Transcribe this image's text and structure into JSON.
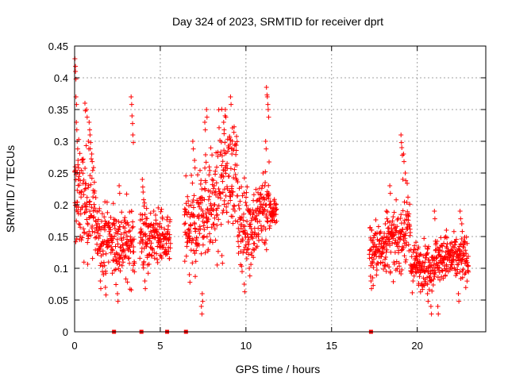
{
  "chart_data": {
    "type": "scatter",
    "title": "Day 324 of 2023, SRMTID for receiver dprt",
    "xlabel": "GPS time / hours",
    "ylabel": "SRMTID / TECUs",
    "xlim": [
      0,
      24
    ],
    "ylim": [
      0,
      0.45
    ],
    "xticks": [
      "0",
      "5",
      "10",
      "15",
      "20"
    ],
    "xtick_values": [
      0,
      5,
      10,
      15,
      20
    ],
    "yticks": [
      "0",
      "0.05",
      "0.1",
      "0.15",
      "0.2",
      "0.25",
      "0.3",
      "0.35",
      "0.4",
      "0.45"
    ],
    "ytick_values": [
      0,
      0.05,
      0.1,
      0.15,
      0.2,
      0.25,
      0.3,
      0.35,
      0.4,
      0.45
    ],
    "grid": true,
    "marker": "plus",
    "color": "#ff0000",
    "series": [
      {
        "segments": [
          {
            "x_range": [
              0.0,
              0.5
            ],
            "center": 0.21,
            "spread": 0.07,
            "peaks": [
              [
                0.02,
                0.43
              ],
              [
                0.05,
                0.41
              ],
              [
                0.08,
                0.37
              ],
              [
                0.1,
                0.33
              ],
              [
                0.15,
                0.3
              ],
              [
                0.2,
                0.27
              ],
              [
                0.3,
                0.25
              ]
            ]
          },
          {
            "x_range": [
              0.5,
              1.2
            ],
            "center": 0.2,
            "spread": 0.07,
            "peaks": [
              [
                0.6,
                0.36
              ],
              [
                0.7,
                0.35
              ],
              [
                0.8,
                0.3
              ],
              [
                0.9,
                0.31
              ],
              [
                1.0,
                0.28
              ],
              [
                0.85,
                0.33
              ]
            ]
          },
          {
            "x_range": [
              1.2,
              2.2
            ],
            "center": 0.15,
            "spread": 0.045,
            "peaks": [
              [
                1.8,
                0.07
              ],
              [
                1.5,
                0.08
              ]
            ]
          },
          {
            "x_range": [
              2.2,
              3.5
            ],
            "center": 0.14,
            "spread": 0.05,
            "peaks": [
              [
                3.3,
                0.37
              ],
              [
                3.35,
                0.34
              ],
              [
                3.4,
                0.31
              ],
              [
                2.6,
                0.23
              ],
              [
                2.5,
                0.06
              ]
            ]
          },
          {
            "x_range": [
              3.8,
              4.3
            ],
            "center": 0.15,
            "spread": 0.05,
            "peaks": [
              [
                3.95,
                0.24
              ],
              [
                4.0,
                0.22
              ],
              [
                4.1,
                0.08
              ]
            ]
          },
          {
            "x_range": [
              4.3,
              5.2
            ],
            "center": 0.15,
            "spread": 0.035,
            "peaks": []
          },
          {
            "x_range": [
              5.2,
              5.6
            ],
            "center": 0.14,
            "spread": 0.03,
            "peaks": []
          },
          {
            "x_range": [
              6.4,
              7.2
            ],
            "center": 0.16,
            "spread": 0.06,
            "peaks": [
              [
                6.9,
                0.3
              ],
              [
                7.0,
                0.27
              ],
              [
                6.7,
                0.09
              ]
            ]
          },
          {
            "x_range": [
              7.2,
              8.4
            ],
            "center": 0.2,
            "spread": 0.07,
            "peaks": [
              [
                7.7,
                0.35
              ],
              [
                7.6,
                0.33
              ],
              [
                7.4,
                0.04
              ],
              [
                7.45,
                0.06
              ]
            ]
          },
          {
            "x_range": [
              8.4,
              9.5
            ],
            "center": 0.25,
            "spread": 0.07,
            "peaks": [
              [
                9.1,
                0.37
              ],
              [
                8.8,
                0.35
              ],
              [
                8.7,
                0.33
              ],
              [
                9.2,
                0.3
              ],
              [
                8.6,
                0.12
              ]
            ]
          },
          {
            "x_range": [
              9.5,
              10.8
            ],
            "center": 0.17,
            "spread": 0.055,
            "peaks": [
              [
                9.9,
                0.075
              ],
              [
                10.2,
                0.1
              ]
            ]
          },
          {
            "x_range": [
              10.8,
              11.4
            ],
            "center": 0.2,
            "spread": 0.06,
            "peaks": [
              [
                11.2,
                0.385
              ],
              [
                11.25,
                0.37
              ],
              [
                11.3,
                0.35
              ],
              [
                11.15,
                0.3
              ]
            ]
          },
          {
            "x_range": [
              11.4,
              11.8
            ],
            "center": 0.19,
            "spread": 0.02,
            "peaks": []
          },
          {
            "x_range": [
              17.2,
              18.0
            ],
            "center": 0.13,
            "spread": 0.035,
            "peaks": [
              [
                17.3,
                0.08
              ],
              [
                17.4,
                0.085
              ]
            ]
          },
          {
            "x_range": [
              18.0,
              19.0
            ],
            "center": 0.14,
            "spread": 0.04,
            "peaks": [
              [
                18.4,
                0.23
              ],
              [
                18.2,
                0.19
              ]
            ]
          },
          {
            "x_range": [
              19.0,
              19.6
            ],
            "center": 0.16,
            "spread": 0.05,
            "peaks": [
              [
                19.05,
                0.31
              ],
              [
                19.1,
                0.29
              ],
              [
                19.2,
                0.28
              ],
              [
                19.3,
                0.25
              ]
            ]
          },
          {
            "x_range": [
              19.6,
              21.0
            ],
            "center": 0.105,
            "spread": 0.03,
            "peaks": [
              [
                20.6,
                0.06
              ],
              [
                21.0,
                0.19
              ],
              [
                20.8,
                0.04
              ]
            ]
          },
          {
            "x_range": [
              21.0,
              22.3
            ],
            "center": 0.115,
            "spread": 0.03,
            "peaks": [
              [
                21.7,
                0.16
              ],
              [
                21.2,
                0.04
              ]
            ]
          },
          {
            "x_range": [
              22.3,
              23.0
            ],
            "center": 0.115,
            "spread": 0.03,
            "peaks": [
              [
                22.5,
                0.19
              ],
              [
                22.6,
                0.17
              ],
              [
                22.4,
                0.06
              ]
            ]
          }
        ]
      }
    ],
    "zero_markers_x": [
      2.3,
      3.9,
      5.4,
      6.5,
      17.3
    ]
  }
}
